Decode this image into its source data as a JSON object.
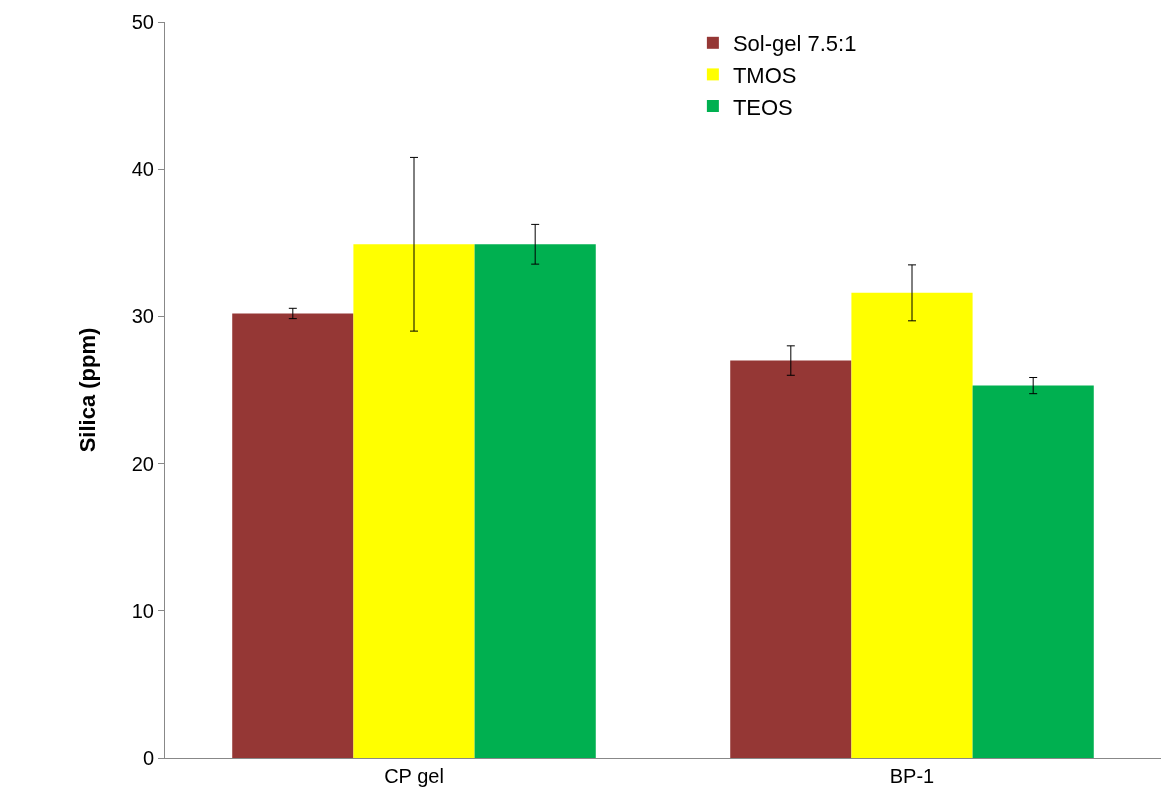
{
  "chart_data": {
    "type": "bar",
    "ylabel": "Silica (ppm)",
    "categories": [
      "CP gel",
      "BP-1"
    ],
    "series": [
      {
        "name": "Sol-gel 7.5:1",
        "color": "#953735",
        "values": [
          30.2,
          27.0
        ],
        "errors": [
          0.35,
          1.0
        ]
      },
      {
        "name": "TMOS",
        "color": "#ffff00",
        "values": [
          34.9,
          31.6
        ],
        "errors": [
          5.9,
          1.9
        ]
      },
      {
        "name": "TEOS",
        "color": "#00b050",
        "values": [
          34.9,
          25.3
        ],
        "errors": [
          1.35,
          0.55
        ]
      }
    ],
    "ylim": [
      0,
      50
    ],
    "yticks": [
      0,
      10,
      20,
      30,
      40,
      50
    ],
    "legend": "top right"
  }
}
